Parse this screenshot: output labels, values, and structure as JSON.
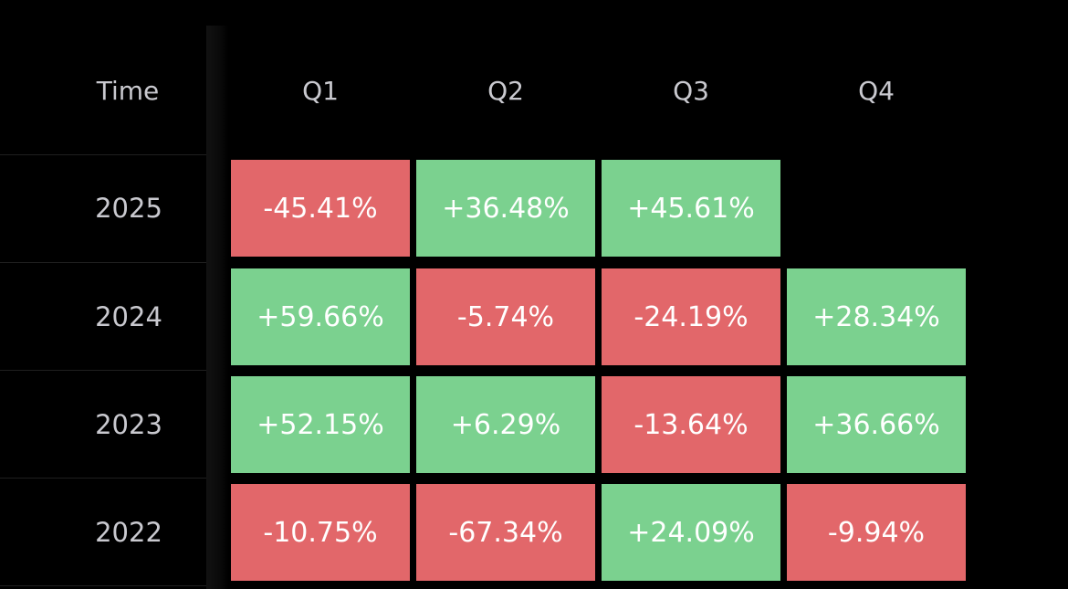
{
  "colors": {
    "positive": "#7bd18f",
    "negative": "#e2676a",
    "background": "#000000",
    "header_text": "#c9c9cf"
  },
  "chart_data": {
    "type": "heatmap",
    "corner_label": "Time",
    "columns": [
      "Q1",
      "Q2",
      "Q3",
      "Q4"
    ],
    "rows": [
      {
        "label": "2025",
        "values": [
          "-45.41%",
          "+36.48%",
          "+45.61%",
          null
        ]
      },
      {
        "label": "2024",
        "values": [
          "+59.66%",
          "-5.74%",
          "-24.19%",
          "+28.34%"
        ]
      },
      {
        "label": "2023",
        "values": [
          "+52.15%",
          "+6.29%",
          "-13.64%",
          "+36.66%"
        ]
      },
      {
        "label": "2022",
        "values": [
          "-10.75%",
          "-67.34%",
          "+24.09%",
          "-9.94%"
        ]
      }
    ]
  }
}
